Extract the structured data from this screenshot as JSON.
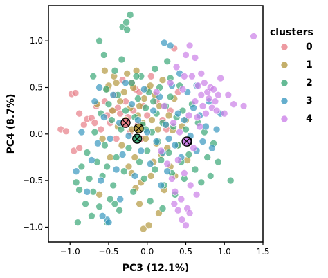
{
  "chart_data": {
    "type": "scatter",
    "title": "",
    "xlabel": "PC3 (12.1%)",
    "ylabel": "PC4 (8.7%)",
    "xlim": [
      -1.28,
      1.5
    ],
    "ylim": [
      -1.16,
      1.38
    ],
    "xticks": [
      -1.0,
      -0.5,
      0.0,
      0.5,
      1.0,
      1.5
    ],
    "xtick_labels": [
      "−1.0",
      "−0.5",
      "0.0",
      "0.5",
      "1.0",
      "1.5"
    ],
    "yticks": [
      -1.0,
      -0.5,
      0.0,
      0.5,
      1.0
    ],
    "ytick_labels": [
      "−1.0",
      "−0.5",
      "0.0",
      "0.5",
      "1.0"
    ],
    "grid": false,
    "legend": {
      "title": "clusters",
      "placement": "outside right"
    },
    "series": [
      {
        "name": "0",
        "color": "#e8818a",
        "points": [
          [
            -1.12,
            0.05
          ],
          [
            -1.05,
            0.03
          ],
          [
            -0.98,
            0.43
          ],
          [
            -0.93,
            0.44
          ],
          [
            -0.88,
            0.22
          ],
          [
            -0.82,
            0.1
          ],
          [
            -0.78,
            0.16
          ],
          [
            -0.72,
            0.17
          ],
          [
            -0.68,
            0.12
          ],
          [
            -0.66,
            0.3
          ],
          [
            -0.6,
            0.05
          ],
          [
            -0.55,
            0.35
          ],
          [
            -0.52,
            0.2
          ],
          [
            -0.48,
            0.12
          ],
          [
            -0.45,
            0.25
          ],
          [
            -0.42,
            0.42
          ],
          [
            -0.4,
            -0.05
          ],
          [
            -0.38,
            0.28
          ],
          [
            -0.35,
            0.22
          ],
          [
            -0.32,
            0.58
          ],
          [
            -0.3,
            0.12
          ],
          [
            -0.28,
            0.35
          ],
          [
            -0.25,
            0.18
          ],
          [
            -0.22,
            0.02
          ],
          [
            -0.2,
            0.55
          ],
          [
            -0.18,
            0.25
          ],
          [
            -0.15,
            0.48
          ],
          [
            -0.12,
            0.1
          ],
          [
            -0.1,
            0.45
          ],
          [
            -0.08,
            -0.05
          ],
          [
            -0.05,
            0.3
          ],
          [
            0.0,
            0.2
          ],
          [
            0.05,
            0.62
          ],
          [
            0.12,
            0.35
          ],
          [
            0.2,
            0.15
          ],
          [
            0.25,
            0.05
          ],
          [
            0.3,
            0.25
          ],
          [
            0.35,
            0.92
          ],
          [
            0.4,
            0.45
          ],
          [
            -0.95,
            -0.18
          ],
          [
            -0.88,
            -0.15
          ],
          [
            -0.28,
            0.12
          ]
        ]
      },
      {
        "name": "1",
        "color": "#b59b45",
        "points": [
          [
            -0.62,
            -0.65
          ],
          [
            -0.55,
            0.68
          ],
          [
            -0.52,
            0.48
          ],
          [
            -0.5,
            0.52
          ],
          [
            -0.48,
            -0.25
          ],
          [
            -0.45,
            0.25
          ],
          [
            -0.43,
            0.62
          ],
          [
            -0.4,
            0.55
          ],
          [
            -0.38,
            0.08
          ],
          [
            -0.35,
            0.35
          ],
          [
            -0.33,
            -0.12
          ],
          [
            -0.3,
            0.45
          ],
          [
            -0.28,
            0.15
          ],
          [
            -0.26,
            0.65
          ],
          [
            -0.24,
            -0.35
          ],
          [
            -0.22,
            0.28
          ],
          [
            -0.2,
            0.05
          ],
          [
            -0.18,
            0.5
          ],
          [
            -0.16,
            -0.25
          ],
          [
            -0.14,
            0.68
          ],
          [
            -0.12,
            0.2
          ],
          [
            -0.1,
            0.3
          ],
          [
            -0.08,
            -0.52
          ],
          [
            -0.06,
            0.12
          ],
          [
            -0.04,
            0.38
          ],
          [
            -0.02,
            -0.05
          ],
          [
            0.0,
            0.48
          ],
          [
            0.02,
            -0.98
          ],
          [
            0.04,
            0.52
          ],
          [
            0.06,
            0.15
          ],
          [
            0.08,
            -0.3
          ],
          [
            0.1,
            0.42
          ],
          [
            0.12,
            -0.1
          ],
          [
            0.14,
            0.05
          ],
          [
            0.16,
            0.3
          ],
          [
            0.18,
            -0.22
          ],
          [
            0.2,
            0.58
          ],
          [
            0.22,
            -0.6
          ],
          [
            0.24,
            0.1
          ],
          [
            0.26,
            -0.15
          ],
          [
            0.28,
            0.2
          ],
          [
            0.3,
            -0.35
          ],
          [
            0.33,
            0.04
          ],
          [
            0.36,
            -0.45
          ],
          [
            0.4,
            -0.12
          ],
          [
            0.45,
            0.08
          ],
          [
            0.52,
            -0.28
          ],
          [
            -0.05,
            -1.02
          ],
          [
            -0.2,
            -0.42
          ],
          [
            -0.15,
            -0.58
          ],
          [
            0.05,
            -0.45
          ],
          [
            -0.65,
            0.32
          ],
          [
            -0.58,
            -0.05
          ],
          [
            0.35,
            0.38
          ],
          [
            0.5,
            0.15
          ],
          [
            -0.1,
            -0.75
          ],
          [
            0.15,
            -0.85
          ],
          [
            -0.11,
            0.06
          ]
        ]
      },
      {
        "name": "2",
        "color": "#3fa97a",
        "points": [
          [
            -0.92,
            -0.52
          ],
          [
            -0.9,
            -0.95
          ],
          [
            -0.85,
            -0.35
          ],
          [
            -0.8,
            -0.75
          ],
          [
            -0.78,
            -0.2
          ],
          [
            -0.75,
            -0.48
          ],
          [
            -0.72,
            -0.88
          ],
          [
            -0.7,
            -0.62
          ],
          [
            -0.68,
            0.02
          ],
          [
            -0.65,
            -0.3
          ],
          [
            -0.62,
            -0.78
          ],
          [
            -0.6,
            0.22
          ],
          [
            -0.58,
            -0.45
          ],
          [
            -0.56,
            0.85
          ],
          [
            -0.55,
            -0.12
          ],
          [
            -0.53,
            0.48
          ],
          [
            -0.52,
            -0.95
          ],
          [
            -0.5,
            0.32
          ],
          [
            -0.48,
            -0.7
          ],
          [
            -0.46,
            0.15
          ],
          [
            -0.44,
            -0.55
          ],
          [
            -0.42,
            0.68
          ],
          [
            -0.4,
            -0.25
          ],
          [
            -0.38,
            0.42
          ],
          [
            -0.36,
            -0.82
          ],
          [
            -0.34,
            0.05
          ],
          [
            -0.32,
            1.15
          ],
          [
            -0.3,
            -0.4
          ],
          [
            -0.28,
            0.25
          ],
          [
            -0.26,
            1.12
          ],
          [
            -0.24,
            -0.15
          ],
          [
            -0.22,
            1.28
          ],
          [
            -0.2,
            0.55
          ],
          [
            -0.18,
            -0.62
          ],
          [
            -0.16,
            0.18
          ],
          [
            -0.14,
            -0.05
          ],
          [
            -0.12,
            0.38
          ],
          [
            -0.1,
            -0.3
          ],
          [
            -0.08,
            0.62
          ],
          [
            -0.06,
            0.1
          ],
          [
            -0.04,
            -0.48
          ],
          [
            -0.02,
            0.28
          ],
          [
            0.0,
            -0.18
          ],
          [
            0.02,
            0.45
          ],
          [
            0.04,
            -0.72
          ],
          [
            0.06,
            0.02
          ],
          [
            0.08,
            0.35
          ],
          [
            0.1,
            -0.38
          ],
          [
            0.12,
            0.22
          ],
          [
            0.14,
            -0.08
          ],
          [
            0.16,
            0.5
          ],
          [
            0.18,
            -0.28
          ],
          [
            0.2,
            0.12
          ],
          [
            0.22,
            -0.55
          ],
          [
            0.24,
            0.3
          ],
          [
            0.26,
            0.78
          ],
          [
            0.28,
            -0.2
          ],
          [
            0.3,
            0.4
          ],
          [
            0.32,
            -0.42
          ],
          [
            0.34,
            0.08
          ],
          [
            0.36,
            -0.65
          ],
          [
            0.38,
            0.18
          ],
          [
            0.4,
            -0.12
          ],
          [
            0.42,
            0.52
          ],
          [
            0.44,
            -0.3
          ],
          [
            0.46,
            0.25
          ],
          [
            0.48,
            -0.48
          ],
          [
            0.5,
            0.05
          ],
          [
            0.54,
            -0.22
          ],
          [
            0.58,
            0.32
          ],
          [
            0.62,
            -0.38
          ],
          [
            0.66,
            0.12
          ],
          [
            0.7,
            -0.52
          ],
          [
            0.74,
            0.02
          ],
          [
            0.78,
            -0.25
          ],
          [
            0.82,
            -0.45
          ],
          [
            0.86,
            -0.1
          ],
          [
            0.92,
            -0.3
          ],
          [
            1.08,
            -0.5
          ],
          [
            -0.88,
            -0.6
          ],
          [
            -0.7,
            0.62
          ],
          [
            -0.62,
            1.0
          ],
          [
            -0.52,
            -0.35
          ],
          [
            -0.42,
            -0.75
          ],
          [
            -0.33,
            0.8
          ],
          [
            -0.27,
            1.2
          ],
          [
            -0.14,
            0.62
          ],
          [
            -0.02,
            0.05
          ],
          [
            0.1,
            0.7
          ],
          [
            0.2,
            -0.8
          ],
          [
            0.3,
            0.6
          ],
          [
            -0.13,
            -0.05
          ]
        ]
      },
      {
        "name": "3",
        "color": "#3d9ac0",
        "points": [
          [
            -0.92,
            -0.4
          ],
          [
            -0.85,
            0.02
          ],
          [
            -0.78,
            -0.62
          ],
          [
            -0.72,
            -0.28
          ],
          [
            -0.68,
            0.35
          ],
          [
            -0.64,
            -0.1
          ],
          [
            -0.6,
            -0.5
          ],
          [
            -0.56,
            0.18
          ],
          [
            -0.52,
            -0.92
          ],
          [
            -0.48,
            -0.05
          ],
          [
            -0.44,
            0.42
          ],
          [
            -0.4,
            -0.38
          ],
          [
            -0.36,
            0.12
          ],
          [
            -0.32,
            -0.22
          ],
          [
            -0.28,
            0.55
          ],
          [
            -0.24,
            -0.02
          ],
          [
            -0.2,
            0.32
          ],
          [
            -0.16,
            -0.45
          ],
          [
            -0.12,
            0.15
          ],
          [
            -0.08,
            -0.18
          ],
          [
            -0.04,
            0.48
          ],
          [
            0.0,
            0.02
          ],
          [
            0.04,
            -0.32
          ],
          [
            0.08,
            0.25
          ],
          [
            0.12,
            -0.08
          ],
          [
            0.16,
            0.4
          ],
          [
            0.2,
            -0.2
          ],
          [
            0.24,
            0.1
          ],
          [
            0.28,
            -0.05
          ],
          [
            0.32,
            0.52
          ],
          [
            0.36,
            -0.12
          ],
          [
            0.4,
            0.22
          ],
          [
            0.44,
            -0.25
          ],
          [
            0.48,
            0.15
          ],
          [
            0.52,
            0.45
          ],
          [
            0.56,
            -0.02
          ],
          [
            0.6,
            0.28
          ],
          [
            0.64,
            -0.18
          ],
          [
            0.68,
            0.2
          ],
          [
            0.72,
            -0.08
          ],
          [
            0.76,
            0.08
          ],
          [
            0.8,
            0.35
          ],
          [
            0.84,
            -0.15
          ],
          [
            0.9,
            0.05
          ],
          [
            0.95,
            0.22
          ],
          [
            0.22,
            0.98
          ],
          [
            0.3,
            0.95
          ],
          [
            -0.58,
            -0.88
          ],
          [
            -0.5,
            -0.95
          ],
          [
            -0.35,
            -0.7
          ],
          [
            0.18,
            -0.55
          ],
          [
            0.26,
            -0.4
          ],
          [
            -0.62,
            0.5
          ],
          [
            0.64,
            0.52
          ],
          [
            0.42,
            0.65
          ],
          [
            0.52,
            -0.08
          ]
        ]
      },
      {
        "name": "4",
        "color": "#cc82e8",
        "points": [
          [
            0.12,
            0.45
          ],
          [
            0.18,
            -0.18
          ],
          [
            0.22,
            0.3
          ],
          [
            0.26,
            -0.32
          ],
          [
            0.3,
            0.55
          ],
          [
            0.32,
            -0.48
          ],
          [
            0.34,
            0.12
          ],
          [
            0.36,
            -0.62
          ],
          [
            0.38,
            0.72
          ],
          [
            0.4,
            -0.28
          ],
          [
            0.42,
            0.02
          ],
          [
            0.44,
            -0.7
          ],
          [
            0.46,
            0.48
          ],
          [
            0.48,
            -0.42
          ],
          [
            0.5,
            0.85
          ],
          [
            0.52,
            -0.8
          ],
          [
            0.54,
            0.2
          ],
          [
            0.56,
            -0.55
          ],
          [
            0.58,
            0.62
          ],
          [
            0.6,
            -0.15
          ],
          [
            0.62,
            0.35
          ],
          [
            0.64,
            -0.65
          ],
          [
            0.66,
            0.52
          ],
          [
            0.68,
            0.08
          ],
          [
            0.7,
            0.42
          ],
          [
            0.72,
            0.3
          ],
          [
            0.74,
            0.55
          ],
          [
            0.76,
            0.22
          ],
          [
            0.78,
            0.45
          ],
          [
            0.8,
            0.38
          ],
          [
            0.82,
            0.5
          ],
          [
            0.84,
            0.28
          ],
          [
            0.86,
            0.48
          ],
          [
            0.88,
            0.35
          ],
          [
            0.9,
            0.25
          ],
          [
            0.92,
            0.42
          ],
          [
            0.95,
            0.6
          ],
          [
            1.0,
            0.22
          ],
          [
            1.05,
            0.42
          ],
          [
            1.12,
            0.32
          ],
          [
            1.25,
            0.3
          ],
          [
            1.38,
            1.05
          ],
          [
            0.45,
            -0.92
          ],
          [
            0.5,
            -0.98
          ],
          [
            0.55,
            -0.85
          ],
          [
            0.4,
            -0.82
          ],
          [
            0.35,
            -0.75
          ],
          [
            0.62,
            0.82
          ],
          [
            0.55,
            0.95
          ],
          [
            0.7,
            0.65
          ],
          [
            0.48,
            0.62
          ],
          [
            0.65,
            0.18
          ],
          [
            0.52,
            -0.08
          ]
        ]
      }
    ],
    "centroids": [
      {
        "cluster": "0",
        "x": -0.28,
        "y": 0.12
      },
      {
        "cluster": "1",
        "x": -0.11,
        "y": 0.06
      },
      {
        "cluster": "2",
        "x": -0.13,
        "y": -0.05
      },
      {
        "cluster": "3",
        "x": 0.52,
        "y": -0.08
      },
      {
        "cluster": "4",
        "x": 0.51,
        "y": -0.08
      }
    ]
  }
}
